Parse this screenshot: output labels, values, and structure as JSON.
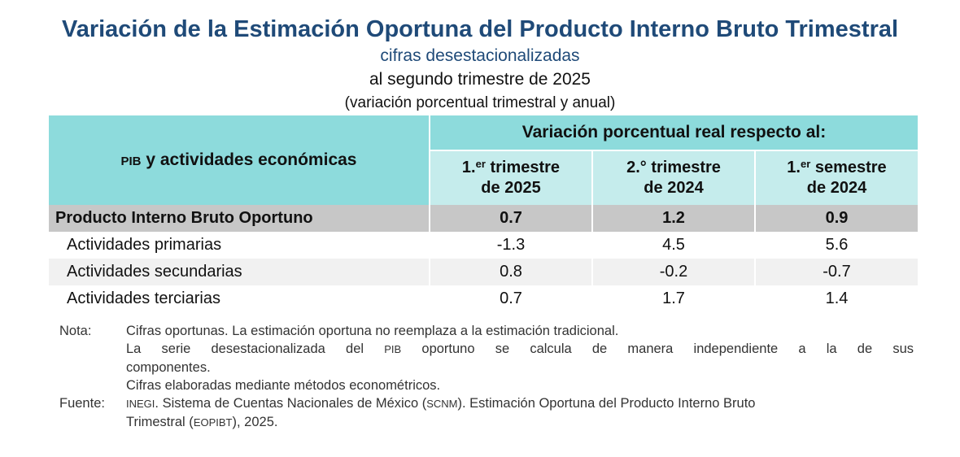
{
  "title": "Variación de la Estimación Oportuna del Producto Interno Bruto Trimestral",
  "subtitle": "cifras desestacionalizadas",
  "period": "al segundo trimestre de 2025",
  "units": "(variación porcentual trimestral y anual)",
  "table": {
    "row_header_abbr": "PIB",
    "row_header_rest": " y actividades económicas",
    "group_header": "Variación porcentual real respecto al:",
    "columns": [
      {
        "line1_num": "1.",
        "line1_sup": "er",
        "line1_rest": " trimestre",
        "line2": "de 2025"
      },
      {
        "line1_num": "2.° trimestre",
        "line1_sup": "",
        "line1_rest": "",
        "line2": "de 2024"
      },
      {
        "line1_num": "1.",
        "line1_sup": "er",
        "line1_rest": " semestre",
        "line2": "de 2024"
      }
    ],
    "rows": [
      {
        "label": "Producto Interno Bruto Oportuno",
        "values": [
          "0.7",
          "1.2",
          "0.9"
        ]
      },
      {
        "label": "Actividades primarias",
        "values": [
          "-1.3",
          "4.5",
          "5.6"
        ]
      },
      {
        "label": "Actividades secundarias",
        "values": [
          "0.8",
          "-0.2",
          "-0.7"
        ]
      },
      {
        "label": "Actividades terciarias",
        "values": [
          "0.7",
          "1.7",
          "1.4"
        ]
      }
    ]
  },
  "notes": {
    "nota_label": "Nota:",
    "nota_line1": "Cifras oportunas. La estimación oportuna no reemplaza a la estimación tradicional.",
    "nota_line2a": "La serie desestacionalizada del ",
    "nota_line2_abbr": "PIB",
    "nota_line2b": " oportuno se calcula de manera independiente a la de sus",
    "nota_line3": "componentes.",
    "nota_line4": "Cifras elaboradas mediante métodos econométricos.",
    "fuente_label": "Fuente:",
    "fuente_abbr1": "INEGI",
    "fuente_text1": ". Sistema de Cuentas Nacionales de México (",
    "fuente_abbr2": "SCNM",
    "fuente_text2": "). Estimación Oportuna del Producto Interno Bruto",
    "fuente_text3": "Trimestral (",
    "fuente_abbr3": "EOPIBT",
    "fuente_text4": "), 2025."
  }
}
